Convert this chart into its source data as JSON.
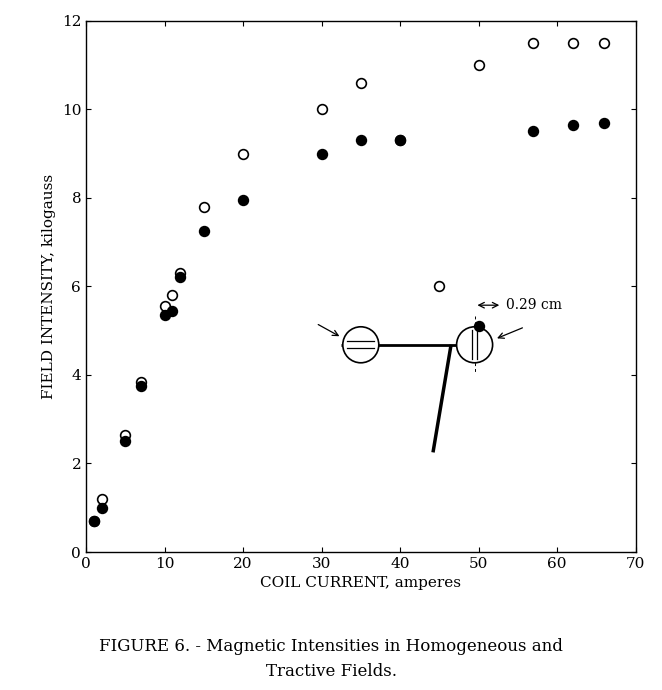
{
  "open_x": [
    1,
    2,
    5,
    7,
    10,
    11,
    12,
    15,
    20,
    30,
    35,
    40,
    45,
    50,
    57,
    62,
    66
  ],
  "open_y": [
    0.7,
    1.2,
    2.65,
    3.85,
    5.55,
    5.8,
    6.3,
    7.8,
    9.0,
    10.0,
    10.6,
    9.3,
    6.0,
    11.0,
    11.5,
    11.5,
    11.5
  ],
  "filled_x": [
    1,
    2,
    5,
    7,
    10,
    11,
    12,
    15,
    20,
    30,
    35,
    40,
    50,
    57,
    62,
    66
  ],
  "filled_y": [
    0.7,
    1.0,
    2.5,
    3.75,
    5.35,
    5.45,
    6.2,
    7.25,
    7.95,
    9.0,
    9.3,
    9.3,
    5.1,
    9.5,
    9.65,
    9.7
  ],
  "xlim": [
    0,
    70
  ],
  "ylim": [
    0,
    12
  ],
  "xticks": [
    0,
    10,
    20,
    30,
    40,
    50,
    60,
    70
  ],
  "yticks": [
    0,
    2,
    4,
    6,
    8,
    10,
    12
  ],
  "xlabel": "COIL CURRENT, amperes",
  "ylabel": "FIELD INTENSITY, kilogauss",
  "caption_line1": "FIGURE 6. - Magnetic Intensities in Homogeneous and",
  "caption_line2": "Tractive Fields.",
  "annotation_text": "0.29 cm",
  "bg_color": "#ffffff",
  "marker_color_open": "#ffffff",
  "marker_color_filled": "#000000",
  "marker_edge_color": "#000000",
  "marker_size": 7
}
